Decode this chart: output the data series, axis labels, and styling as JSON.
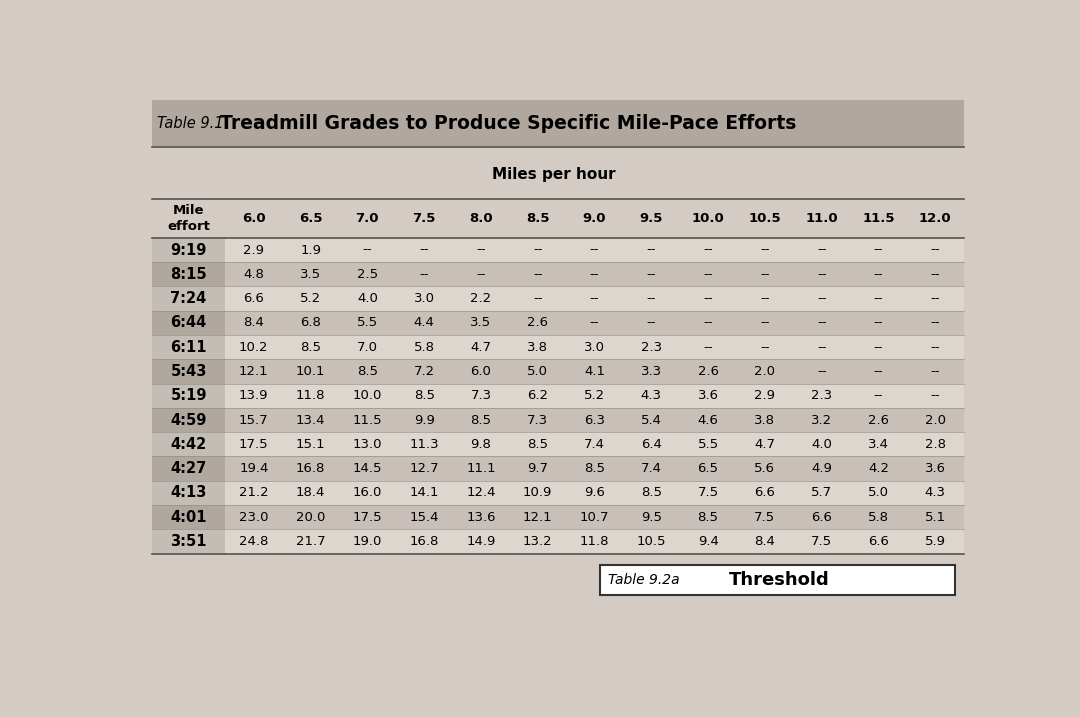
{
  "title_prefix": "Table 9.1",
  "title_main": "Treadmill Grades to Produce Specific Mile-Pace Efforts",
  "subtitle": "Miles per hour",
  "col_headers": [
    "6.0",
    "6.5",
    "7.0",
    "7.5",
    "8.0",
    "8.5",
    "9.0",
    "9.5",
    "10.0",
    "10.5",
    "11.0",
    "11.5",
    "12.0"
  ],
  "row_labels": [
    "9:19",
    "8:15",
    "7:24",
    "6:44",
    "6:11",
    "5:43",
    "5:19",
    "4:59",
    "4:42",
    "4:27",
    "4:13",
    "4:01",
    "3:51"
  ],
  "table_data": [
    [
      "2.9",
      "1.9",
      "--",
      "--",
      "--",
      "--",
      "--",
      "--",
      "--",
      "--",
      "--",
      "--",
      "--"
    ],
    [
      "4.8",
      "3.5",
      "2.5",
      "--",
      "--",
      "--",
      "--",
      "--",
      "--",
      "--",
      "--",
      "--",
      "--"
    ],
    [
      "6.6",
      "5.2",
      "4.0",
      "3.0",
      "2.2",
      "--",
      "--",
      "--",
      "--",
      "--",
      "--",
      "--",
      "--"
    ],
    [
      "8.4",
      "6.8",
      "5.5",
      "4.4",
      "3.5",
      "2.6",
      "--",
      "--",
      "--",
      "--",
      "--",
      "--",
      "--"
    ],
    [
      "10.2",
      "8.5",
      "7.0",
      "5.8",
      "4.7",
      "3.8",
      "3.0",
      "2.3",
      "--",
      "--",
      "--",
      "--",
      "--"
    ],
    [
      "12.1",
      "10.1",
      "8.5",
      "7.2",
      "6.0",
      "5.0",
      "4.1",
      "3.3",
      "2.6",
      "2.0",
      "--",
      "--",
      "--"
    ],
    [
      "13.9",
      "11.8",
      "10.0",
      "8.5",
      "7.3",
      "6.2",
      "5.2",
      "4.3",
      "3.6",
      "2.9",
      "2.3",
      "--",
      "--"
    ],
    [
      "15.7",
      "13.4",
      "11.5",
      "9.9",
      "8.5",
      "7.3",
      "6.3",
      "5.4",
      "4.6",
      "3.8",
      "3.2",
      "2.6",
      "2.0"
    ],
    [
      "17.5",
      "15.1",
      "13.0",
      "11.3",
      "9.8",
      "8.5",
      "7.4",
      "6.4",
      "5.5",
      "4.7",
      "4.0",
      "3.4",
      "2.8"
    ],
    [
      "19.4",
      "16.8",
      "14.5",
      "12.7",
      "11.1",
      "9.7",
      "8.5",
      "7.4",
      "6.5",
      "5.6",
      "4.9",
      "4.2",
      "3.6"
    ],
    [
      "21.2",
      "18.4",
      "16.0",
      "14.1",
      "12.4",
      "10.9",
      "9.6",
      "8.5",
      "7.5",
      "6.6",
      "5.7",
      "5.0",
      "4.3"
    ],
    [
      "23.0",
      "20.0",
      "17.5",
      "15.4",
      "13.6",
      "12.1",
      "10.7",
      "9.5",
      "8.5",
      "7.5",
      "6.6",
      "5.8",
      "5.1"
    ],
    [
      "24.8",
      "21.7",
      "19.0",
      "16.8",
      "14.9",
      "13.2",
      "11.8",
      "10.5",
      "9.4",
      "8.4",
      "7.5",
      "6.6",
      "5.9"
    ]
  ],
  "footer_table_ref": "Table 9.2a",
  "footer_title": "Threshold",
  "bg_color": "#d4ccc4",
  "title_bar_bg": "#b0a89e",
  "row_label_dark_bg": "#b0a89e",
  "row_label_light_bg": "#c4bdb5",
  "row_data_dark_bg": "#c8c0b8",
  "row_data_light_bg": "#ddd6ce",
  "col_header_bg": "#d4ccc4"
}
